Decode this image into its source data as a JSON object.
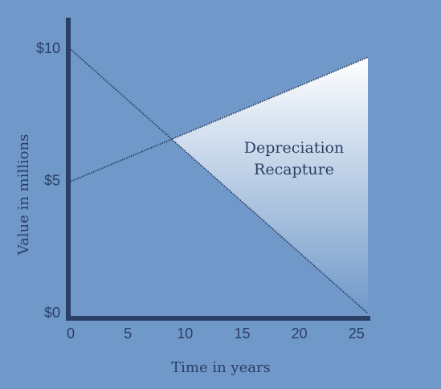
{
  "chart_data": {
    "type": "line",
    "x_label": "Time in years",
    "y_label": "Value in millions",
    "annotation": [
      "Depreciation",
      "Recapture"
    ],
    "x": [
      0,
      26
    ],
    "series": [
      {
        "color": "#1f3258",
        "values": [
          10,
          0
        ]
      },
      {
        "color": "#1f3258",
        "values": [
          5,
          9.7
        ]
      }
    ],
    "xlim": [
      0,
      26
    ],
    "ylim": [
      0,
      11.2
    ],
    "xticks": [
      0,
      5,
      10,
      15,
      20,
      25
    ],
    "yticks": [
      {
        "value": 0,
        "label": "$0"
      },
      {
        "value": 5,
        "label": "$5"
      },
      {
        "value": 10,
        "label": "$10"
      }
    ],
    "axis_color": "#2b3f66"
  }
}
